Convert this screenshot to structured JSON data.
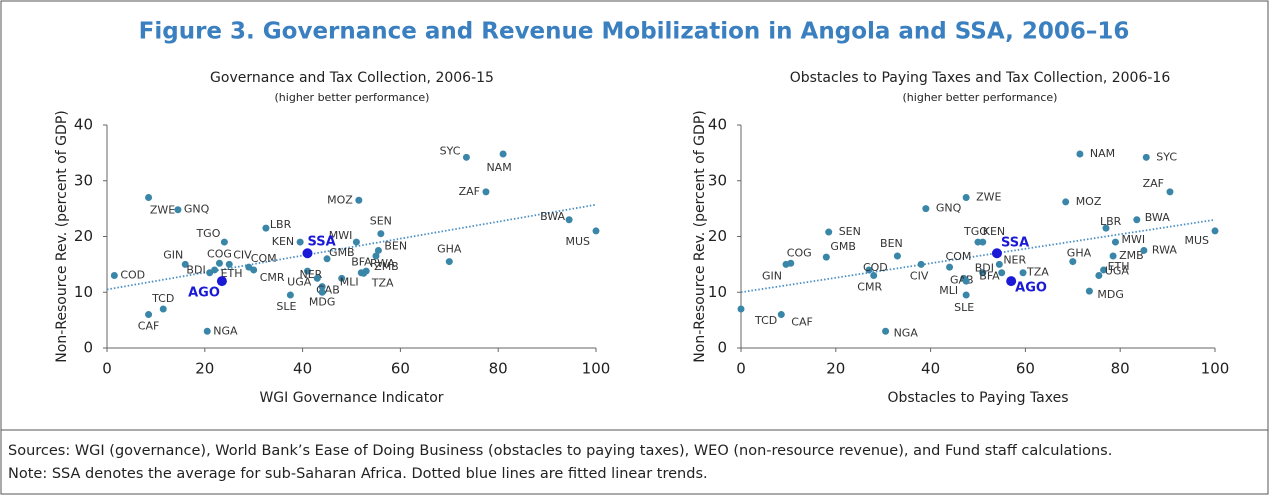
{
  "title": "Figure 3. Governance and Revenue Mobilization in Angola and SSA, 2006–16",
  "chart_data": [
    {
      "type": "scatter",
      "title": "Governance and Tax Collection, 2006-15",
      "subtitle": "(higher better performance)",
      "x_label": "WGI Governance Indicator",
      "y_label": "Non-Resource Rev. (percent of GDP)",
      "xlim": [
        0,
        100
      ],
      "ylim": [
        0,
        40
      ],
      "xticks": [
        0,
        20,
        40,
        60,
        80,
        100
      ],
      "yticks": [
        0,
        10,
        20,
        30,
        40
      ],
      "series": [
        {
          "color": "#3a86a8",
          "labels": [
            "ZWE",
            "GNQ",
            "COD",
            "GIN",
            "COG",
            "CIV",
            "BDI",
            "COM",
            "CMR",
            "ETH",
            "TGO",
            "LBR",
            "KEN",
            "MWI",
            "GMB",
            "NER",
            "UGA",
            "GAB",
            "MLI",
            "MDG",
            "SLE",
            "BFA",
            "ZMB",
            "TZA",
            "RWA",
            "BEN",
            "SEN",
            "MOZ",
            "GHA",
            "SYC",
            "NAM",
            "ZAF",
            "BWA",
            "MUS",
            "TCD",
            "CAF",
            "NGA"
          ],
          "x": [
            8.5,
            14.5,
            1.5,
            16,
            23,
            25,
            21,
            29,
            30,
            22,
            24,
            32.5,
            39.5,
            51,
            45,
            41,
            43,
            44,
            48,
            44,
            37.5,
            52,
            53,
            52.5,
            55,
            55.5,
            56,
            51.5,
            70,
            73.5,
            81,
            77.5,
            94.5,
            100,
            11.5,
            8.5,
            20.5
          ],
          "y": [
            27,
            24.8,
            13,
            15,
            15.2,
            15,
            13.5,
            14.5,
            14,
            14,
            19,
            21.5,
            19,
            19,
            16,
            13.8,
            12.5,
            11,
            12.5,
            10,
            9.5,
            13.5,
            13.8,
            13.4,
            16.5,
            17.5,
            20.5,
            26.5,
            15.5,
            34.2,
            34.8,
            28,
            23,
            21,
            7,
            6,
            3
          ]
        },
        {
          "color": "#1a1ad6",
          "labels": [
            "SSA",
            "AGO"
          ],
          "x": [
            41,
            23.5
          ],
          "y": [
            17,
            12
          ]
        }
      ],
      "trend": {
        "color": "#4a8fc4",
        "x": [
          0,
          100
        ],
        "y": [
          10.5,
          25.7
        ]
      }
    },
    {
      "type": "scatter",
      "title": "Obstacles to Paying Taxes and Tax Collection, 2006-16",
      "subtitle": "(higher better performance)",
      "x_label": "Obstacles to Paying Taxes",
      "y_label": "Non-Resource Rev. (percent of GDP)",
      "xlim": [
        0,
        100
      ],
      "ylim": [
        0,
        40
      ],
      "xticks": [
        0,
        20,
        40,
        60,
        80,
        100
      ],
      "yticks": [
        0,
        10,
        20,
        30,
        40
      ],
      "series": [
        {
          "color": "#3a86a8",
          "labels": [
            "NAM",
            "SYC",
            "ZAF",
            "ZWE",
            "MOZ",
            "GNQ",
            "SEN",
            "GIN",
            "COG",
            "GMB",
            "BEN",
            "COD",
            "CMR",
            "CIV",
            "COM",
            "TGO",
            "KEN",
            "GAB",
            "MLI",
            "SLE",
            "BDI",
            "NER",
            "BFA",
            "TZA",
            "GHA",
            "LBR",
            "BWA",
            "MWI",
            "ZMB",
            "ETH",
            "UGA",
            "MDG",
            "RWA",
            "MUS",
            "TCD",
            "CAF",
            "NGA"
          ],
          "x": [
            71.5,
            85.5,
            90.5,
            47.5,
            68.5,
            39,
            18.5,
            9.5,
            10.5,
            18,
            33,
            27,
            28,
            38,
            44,
            50,
            51,
            47,
            47.5,
            47.5,
            51,
            54.5,
            55,
            59.5,
            70,
            77,
            83.5,
            79,
            78.5,
            76.5,
            75.5,
            73.5,
            85,
            100,
            0,
            8.5,
            30.5
          ],
          "y": [
            34.8,
            34.2,
            28,
            27,
            26.2,
            25,
            20.8,
            15,
            15.2,
            16.3,
            16.5,
            14,
            13,
            15,
            14.5,
            19,
            19,
            12.5,
            12,
            9.5,
            13.5,
            15,
            13.5,
            13.5,
            15.5,
            21.5,
            23,
            19,
            16.5,
            14,
            13,
            10.2,
            17.5,
            21,
            7,
            6,
            3
          ]
        },
        {
          "color": "#1a1ad6",
          "labels": [
            "SSA",
            "AGO"
          ],
          "x": [
            54,
            57
          ],
          "y": [
            17,
            12
          ]
        }
      ],
      "trend": {
        "color": "#4a8fc4",
        "x": [
          0,
          100
        ],
        "y": [
          10,
          23
        ]
      }
    }
  ],
  "notes": [
    "Sources: WGI (governance), World Bank’s Ease of Doing Business (obstacles to paying taxes), WEO (non-resource revenue), and Fund staff calculations.",
    "Note: SSA denotes the average for sub-Saharan Africa. Dotted blue lines are fitted linear trends."
  ]
}
